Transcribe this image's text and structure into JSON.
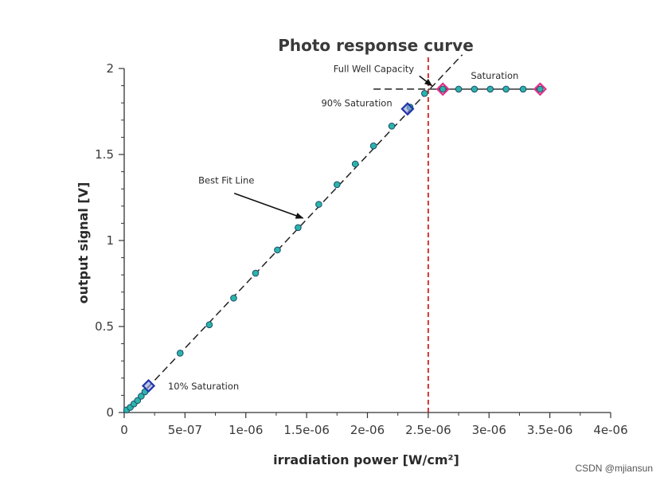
{
  "chart_data": {
    "type": "scatter",
    "title": "Photo response curve",
    "xlabel": "irradiation power [W/cm²]",
    "ylabel": "output signal [V]",
    "xlim": [
      0,
      4e-06
    ],
    "ylim": [
      0,
      2
    ],
    "x_ticks": [
      "0",
      "5e-07",
      "1e-06",
      "1.5e-06",
      "2e-06",
      "2.5e-06",
      "3e-06",
      "3.5e-06",
      "4e-06"
    ],
    "x_tick_values": [
      0,
      5e-07,
      1e-06,
      1.5e-06,
      2e-06,
      2.5e-06,
      3e-06,
      3.5e-06,
      4e-06
    ],
    "y_ticks": [
      "0",
      "0.5",
      "1",
      "1.5",
      "2"
    ],
    "y_tick_values": [
      0,
      0.5,
      1,
      1.5,
      2
    ],
    "grid": false,
    "series": [
      {
        "points": [
          [
            2e-08,
            0.015
          ],
          [
            5e-08,
            0.03
          ],
          [
            8e-08,
            0.05
          ],
          [
            1.1e-07,
            0.07
          ],
          [
            1.4e-07,
            0.095
          ],
          [
            1.7e-07,
            0.12
          ],
          [
            4.6e-07,
            0.345
          ],
          [
            7e-07,
            0.51
          ],
          [
            9e-07,
            0.665
          ],
          [
            1.08e-06,
            0.81
          ],
          [
            1.26e-06,
            0.945
          ],
          [
            1.43e-06,
            1.075
          ],
          [
            1.6e-06,
            1.21
          ],
          [
            1.75e-06,
            1.325
          ],
          [
            1.9e-06,
            1.445
          ],
          [
            2.05e-06,
            1.55
          ],
          [
            2.2e-06,
            1.665
          ],
          [
            2.35e-06,
            1.775
          ],
          [
            2.47e-06,
            1.855
          ],
          [
            2.62e-06,
            1.88
          ],
          [
            2.75e-06,
            1.88
          ],
          [
            2.88e-06,
            1.88
          ],
          [
            3.01e-06,
            1.88
          ],
          [
            3.14e-06,
            1.88
          ],
          [
            3.28e-06,
            1.88
          ],
          [
            3.42e-06,
            1.88
          ]
        ],
        "color": "#2bb5a8"
      }
    ],
    "best_fit_line": {
      "from": [
        0,
        0
      ],
      "to": [
        2.78e-06,
        2.08
      ],
      "color": "#222222",
      "style": "dashed"
    },
    "saturation_level": {
      "y": 1.88,
      "x_from": 2.05e-06,
      "x_to": 2.5e-06,
      "style": "dashed"
    },
    "vertical_marker": {
      "x": 2.5e-06,
      "color": "#cc2222",
      "style": "dashed"
    },
    "markers": [
      {
        "x": 2e-07,
        "y": 0.155,
        "shape": "diamond",
        "color": "#2233aa"
      },
      {
        "x": 2.33e-06,
        "y": 1.765,
        "shape": "diamond",
        "color": "#2233aa"
      },
      {
        "x": 2.62e-06,
        "y": 1.88,
        "shape": "diamond",
        "color": "#e0308a"
      },
      {
        "x": 3.42e-06,
        "y": 1.88,
        "shape": "diamond",
        "color": "#e0308a"
      }
    ],
    "annotations": [
      {
        "text": "Full Well Capacity",
        "x": 1.72e-06,
        "y": 1.98,
        "arrow_to": [
          2.53e-06,
          1.9
        ]
      },
      {
        "text": "Saturation",
        "x": 2.85e-06,
        "y": 1.94
      },
      {
        "text": "90% Saturation",
        "x": 1.62e-06,
        "y": 1.78
      },
      {
        "text": "Best Fit Line",
        "x": 6.1e-07,
        "y": 1.33,
        "arrow_to": [
          1.47e-06,
          1.13
        ]
      },
      {
        "text": "10% Saturation",
        "x": 3.6e-07,
        "y": 0.135
      }
    ]
  },
  "watermark": "CSDN @mjiansun",
  "colors": {
    "axis": "#333333",
    "point_edge": "#1e4a6e",
    "marker_fill": "#8fa0d8"
  }
}
